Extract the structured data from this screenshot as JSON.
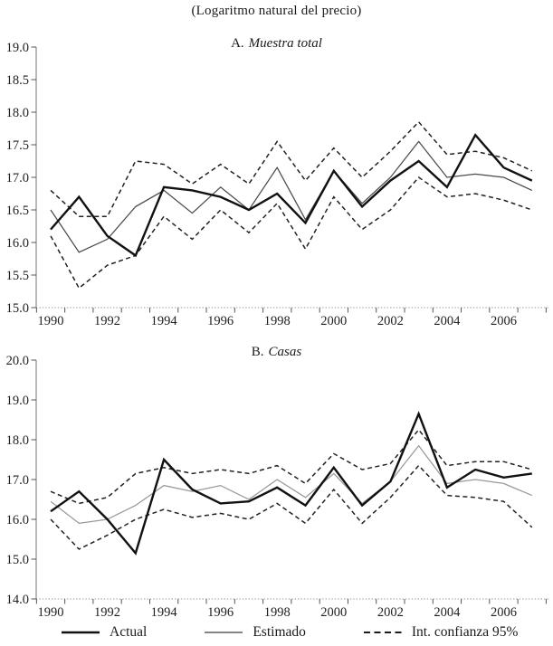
{
  "title": "(Logaritmo natural del precio)",
  "legend": {
    "items": [
      {
        "label": "Actual",
        "style": "thick",
        "color": "#111111"
      },
      {
        "label": "Estimado",
        "style": "thin",
        "color": "#3a3a3a"
      },
      {
        "label": "Int. confianza 95%",
        "style": "dashed",
        "color": "#1a1a1a"
      }
    ]
  },
  "chart_data": [
    {
      "type": "line",
      "panel_label_prefix": "A.",
      "panel_label": "Muestra total",
      "x": [
        1990,
        1991,
        1992,
        1993,
        1994,
        1995,
        1996,
        1997,
        1998,
        1999,
        2000,
        2001,
        2002,
        2003,
        2004,
        2005,
        2006,
        2007
      ],
      "x_tick_labels": [
        "1990",
        "1992",
        "1994",
        "1996",
        "1998",
        "2000",
        "2002",
        "2004",
        "2006"
      ],
      "ylim": [
        15.0,
        19.0
      ],
      "y_tick_step": 0.5,
      "y_tick_labels": [
        "19.0",
        "18.5",
        "18.0",
        "17.5",
        "17.0",
        "16.5",
        "16.0",
        "15.5",
        "15.0"
      ],
      "grid": false,
      "colors": {
        "thick": "#111111",
        "thin": "#4a4a4a",
        "dashed": "#222222"
      },
      "series": [
        {
          "name": "Actual",
          "style": "thick",
          "values": [
            16.2,
            16.7,
            16.1,
            15.8,
            16.85,
            16.8,
            16.7,
            16.5,
            16.75,
            16.3,
            17.1,
            16.55,
            16.95,
            17.25,
            16.85,
            17.65,
            17.15,
            16.95
          ]
        },
        {
          "name": "Estimado",
          "style": "thin",
          "values": [
            16.5,
            15.85,
            16.05,
            16.55,
            16.8,
            16.45,
            16.85,
            16.5,
            17.15,
            16.35,
            17.1,
            16.6,
            17.0,
            17.55,
            17.0,
            17.05,
            17.0,
            16.8
          ]
        },
        {
          "name": "Int. confianza 95% superior",
          "style": "dashed",
          "values": [
            16.8,
            16.4,
            16.4,
            17.25,
            17.2,
            16.9,
            17.2,
            16.9,
            17.55,
            16.95,
            17.45,
            17.0,
            17.4,
            17.85,
            17.35,
            17.4,
            17.3,
            17.1
          ]
        },
        {
          "name": "Int. confianza 95% inferior",
          "style": "dashed",
          "values": [
            16.1,
            15.3,
            15.65,
            15.8,
            16.4,
            16.05,
            16.5,
            16.15,
            16.6,
            15.9,
            16.7,
            16.2,
            16.5,
            17.0,
            16.7,
            16.75,
            16.65,
            16.5
          ]
        }
      ]
    },
    {
      "type": "line",
      "panel_label_prefix": "B.",
      "panel_label": "Casas",
      "x": [
        1990,
        1991,
        1992,
        1993,
        1994,
        1995,
        1996,
        1997,
        1998,
        1999,
        2000,
        2001,
        2002,
        2003,
        2004,
        2005,
        2006,
        2007
      ],
      "x_tick_labels": [
        "1990",
        "1992",
        "1994",
        "1996",
        "1998",
        "2000",
        "2002",
        "2004",
        "2006"
      ],
      "ylim": [
        14.0,
        20.0
      ],
      "y_tick_step": 1.0,
      "y_tick_labels": [
        "20.0",
        "19.0",
        "18.0",
        "17.0",
        "16.0",
        "15.0",
        "14.0"
      ],
      "grid": false,
      "colors": {
        "thick": "#111111",
        "thin": "#999999",
        "dashed": "#222222"
      },
      "series": [
        {
          "name": "Actual",
          "style": "thick",
          "values": [
            16.2,
            16.7,
            16.0,
            15.15,
            17.5,
            16.75,
            16.4,
            16.45,
            16.8,
            16.35,
            17.3,
            16.35,
            16.95,
            18.65,
            16.8,
            17.25,
            17.05,
            17.15
          ]
        },
        {
          "name": "Estimado",
          "style": "thin",
          "values": [
            16.45,
            15.9,
            16.0,
            16.35,
            16.85,
            16.7,
            16.85,
            16.5,
            17.0,
            16.55,
            17.15,
            16.4,
            16.95,
            17.85,
            16.9,
            17.0,
            16.9,
            16.6
          ]
        },
        {
          "name": "Int. confianza 95% superior",
          "style": "dashed",
          "values": [
            16.7,
            16.4,
            16.55,
            17.15,
            17.3,
            17.15,
            17.25,
            17.15,
            17.35,
            16.9,
            17.65,
            17.25,
            17.4,
            18.25,
            17.35,
            17.45,
            17.45,
            17.25
          ]
        },
        {
          "name": "Int. confianza 95% inferior",
          "style": "dashed",
          "values": [
            16.0,
            15.25,
            15.6,
            16.0,
            16.25,
            16.05,
            16.15,
            16.0,
            16.4,
            15.9,
            16.75,
            15.9,
            16.55,
            17.35,
            16.6,
            16.55,
            16.45,
            15.8
          ]
        }
      ]
    }
  ]
}
